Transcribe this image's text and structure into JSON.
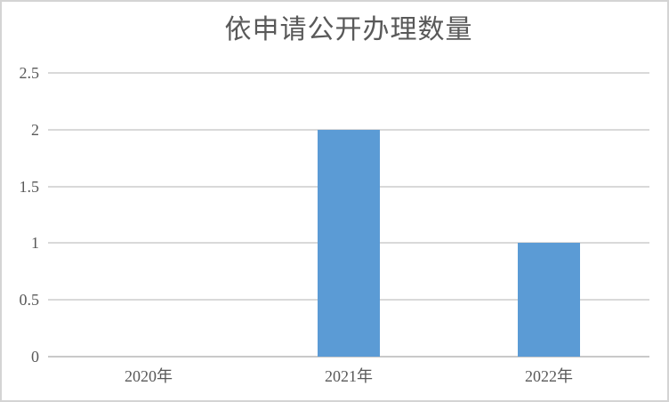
{
  "chart_data": {
    "type": "bar",
    "title": "依申请公开办理数量",
    "categories": [
      "2020年",
      "2021年",
      "2022年"
    ],
    "values": [
      0,
      2,
      1
    ],
    "xlabel": "",
    "ylabel": "",
    "y_ticks": [
      "0",
      "0.5",
      "1",
      "1.5",
      "2",
      "2.5"
    ],
    "ylim": [
      0,
      2.5
    ],
    "grid": true,
    "legend_position": "none",
    "bar_color": "#5b9bd5",
    "gridline_color": "#d9d9d9",
    "axis_line_color": "#c9c9c9",
    "text_color": "#595959",
    "frame_border_color": "#d4d4d4",
    "background_color": "#ffffff"
  }
}
